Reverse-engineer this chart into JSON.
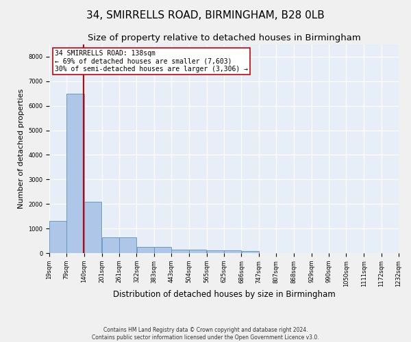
{
  "title1": "34, SMIRRELLS ROAD, BIRMINGHAM, B28 0LB",
  "title2": "Size of property relative to detached houses in Birmingham",
  "xlabel": "Distribution of detached houses by size in Birmingham",
  "ylabel": "Number of detached properties",
  "footnote1": "Contains HM Land Registry data © Crown copyright and database right 2024.",
  "footnote2": "Contains public sector information licensed under the Open Government Licence v3.0.",
  "bin_edges": [
    19,
    79,
    140,
    201,
    261,
    322,
    383,
    443,
    504,
    565,
    625,
    686,
    747,
    807,
    868,
    929,
    990,
    1050,
    1111,
    1172,
    1232
  ],
  "bar_heights": [
    1300,
    6500,
    2100,
    650,
    650,
    250,
    250,
    130,
    130,
    100,
    100,
    70,
    0,
    0,
    0,
    0,
    0,
    0,
    0,
    0
  ],
  "bar_color": "#aec6e8",
  "bar_edgecolor": "#5a8fc2",
  "property_size": 138,
  "property_label": "34 SMIRRELLS ROAD: 138sqm",
  "annotation_line1": "← 69% of detached houses are smaller (7,603)",
  "annotation_line2": "30% of semi-detached houses are larger (3,306) →",
  "vline_color": "#cc0000",
  "annotation_box_edgecolor": "#cc0000",
  "annotation_box_facecolor": "#ffffff",
  "ylim": [
    0,
    8500
  ],
  "yticks": [
    0,
    1000,
    2000,
    3000,
    4000,
    5000,
    6000,
    7000,
    8000
  ],
  "bg_color": "#e8eef7",
  "grid_color": "#ffffff",
  "fig_facecolor": "#f0f0f0",
  "title1_fontsize": 11,
  "title2_fontsize": 9.5,
  "ylabel_fontsize": 8,
  "xlabel_fontsize": 8.5,
  "footnote_fontsize": 5.5,
  "tick_fontsize": 6,
  "annot_fontsize": 7
}
